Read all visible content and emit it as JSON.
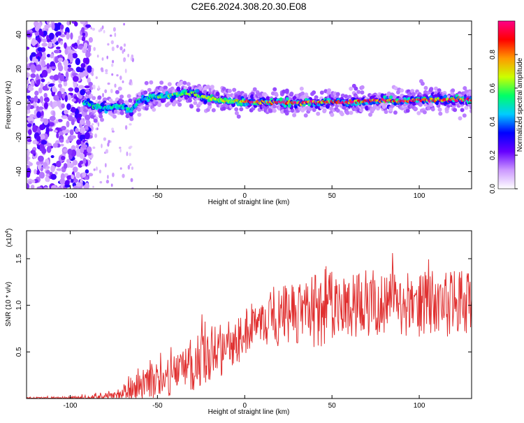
{
  "title": "C2E6.2024.308.20.30.E08",
  "chart_data": [
    {
      "type": "heatmap",
      "xlabel": "Height of straight line (km)",
      "ylabel": "Frequency (Hz)",
      "xlim": [
        -125,
        130
      ],
      "ylim": [
        -50,
        48
      ],
      "xticks": [
        -100,
        -50,
        0,
        50,
        100
      ],
      "yticks": [
        -40,
        -20,
        0,
        20,
        40
      ],
      "colorbar": {
        "label": "Normalized spectral amplitude",
        "range": [
          0.0,
          1.0
        ],
        "ticks": [
          0.0,
          0.2,
          0.4,
          0.6,
          0.8
        ],
        "colors": [
          "#ffffff",
          "#cc99ff",
          "#6600ff",
          "#0000ff",
          "#00ccff",
          "#00ff66",
          "#ccff00",
          "#ff9900",
          "#ff0000",
          "#ff0088"
        ]
      },
      "ridge": {
        "x": [
          -90,
          -85,
          -80,
          -75,
          -70,
          -65,
          -60,
          -55,
          -50,
          -45,
          -40,
          -35,
          -30,
          -25,
          -20,
          -15,
          -10,
          -5,
          0,
          10,
          20,
          30,
          40,
          50,
          60,
          70,
          80,
          90,
          100,
          110,
          120,
          130
        ],
        "freq": [
          0,
          -2,
          -3,
          -2,
          -2,
          -4,
          2,
          3,
          4,
          4,
          5,
          6,
          6,
          4,
          3,
          2,
          1,
          1,
          1,
          0.5,
          0.5,
          0,
          0.5,
          1,
          0.5,
          1,
          1.5,
          1,
          2,
          2,
          2,
          2
        ]
      }
    },
    {
      "type": "line",
      "xlabel": "Height of straight line (km)",
      "ylabel": "SNR (10 * v/v)",
      "y_multiplier": "(x10",
      "y_exponent": "4",
      "y_multiplier_close": ")",
      "xlim": [
        -125,
        130
      ],
      "ylim": [
        0,
        1.8
      ],
      "xticks": [
        -100,
        -50,
        0,
        50,
        100
      ],
      "yticks": [
        0.5,
        1.0,
        1.5
      ],
      "ytick_labels": [
        "0.5",
        "1.0",
        "1.5"
      ],
      "color": "#e03030",
      "envelope": {
        "x": [
          -125,
          -100,
          -90,
          -80,
          -75,
          -70,
          -65,
          -60,
          -55,
          -50,
          -45,
          -40,
          -35,
          -30,
          -25,
          -20,
          -15,
          -10,
          -5,
          0,
          5,
          10,
          15,
          20,
          25,
          30,
          40,
          45,
          50,
          60,
          70,
          80,
          90,
          100,
          110,
          120,
          130
        ],
        "base": [
          0.0,
          0.0,
          0.0,
          0.01,
          0.03,
          0.05,
          0.08,
          0.12,
          0.15,
          0.14,
          0.18,
          0.2,
          0.25,
          0.3,
          0.35,
          0.4,
          0.45,
          0.5,
          0.55,
          0.65,
          0.7,
          0.75,
          0.8,
          0.8,
          0.85,
          0.85,
          0.85,
          0.9,
          0.9,
          0.9,
          0.95,
          0.95,
          0.95,
          0.95,
          0.95,
          0.95,
          0.95
        ],
        "amp": [
          0.02,
          0.03,
          0.05,
          0.07,
          0.1,
          0.12,
          0.2,
          0.3,
          0.35,
          0.3,
          0.3,
          0.35,
          0.4,
          0.45,
          0.45,
          0.5,
          0.45,
          0.4,
          0.4,
          0.35,
          0.35,
          0.35,
          0.45,
          0.5,
          0.5,
          0.55,
          0.6,
          0.7,
          0.6,
          0.55,
          0.55,
          0.55,
          0.55,
          0.55,
          0.55,
          0.55,
          0.55
        ]
      }
    }
  ]
}
